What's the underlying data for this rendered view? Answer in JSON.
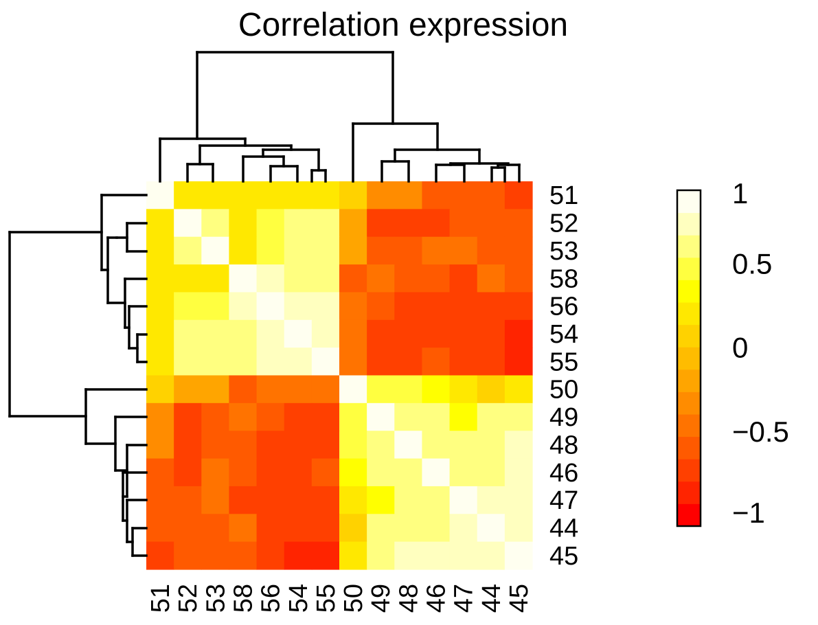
{
  "chart_data": {
    "type": "heatmap",
    "title": "Correlation expression",
    "row_labels": [
      "51",
      "52",
      "53",
      "58",
      "56",
      "54",
      "55",
      "50",
      "49",
      "48",
      "46",
      "47",
      "44",
      "45"
    ],
    "col_labels": [
      "51",
      "52",
      "53",
      "58",
      "56",
      "54",
      "55",
      "50",
      "49",
      "48",
      "46",
      "47",
      "44",
      "45"
    ],
    "values": [
      [
        1.0,
        0.2,
        0.2,
        0.2,
        0.3,
        0.3,
        0.3,
        0.15,
        -0.25,
        -0.3,
        -0.5,
        -0.6,
        -0.55,
        -0.65
      ],
      [
        0.2,
        1.0,
        0.6,
        0.3,
        0.55,
        0.65,
        0.65,
        -0.2,
        -0.7,
        -0.7,
        -0.65,
        -0.55,
        -0.6,
        -0.6
      ],
      [
        0.2,
        0.6,
        1.0,
        0.25,
        0.5,
        0.6,
        0.6,
        -0.1,
        -0.6,
        -0.6,
        -0.45,
        -0.45,
        -0.5,
        -0.5
      ],
      [
        0.2,
        0.3,
        0.25,
        1.0,
        0.85,
        0.65,
        0.65,
        -0.5,
        -0.35,
        -0.55,
        -0.55,
        -0.65,
        -0.45,
        -0.55
      ],
      [
        0.3,
        0.55,
        0.5,
        0.85,
        1.0,
        0.8,
        0.8,
        -0.45,
        -0.6,
        -0.65,
        -0.65,
        -0.65,
        -0.65,
        -0.65
      ],
      [
        0.3,
        0.65,
        0.6,
        0.65,
        0.8,
        1.0,
        0.85,
        -0.4,
        -0.65,
        -0.65,
        -0.65,
        -0.65,
        -0.65,
        -0.75
      ],
      [
        0.3,
        0.65,
        0.6,
        0.65,
        0.8,
        0.85,
        1.0,
        -0.4,
        -0.65,
        -0.65,
        -0.55,
        -0.65,
        -0.65,
        -0.75
      ],
      [
        0.15,
        -0.2,
        -0.1,
        -0.5,
        -0.45,
        -0.4,
        -0.4,
        1.0,
        0.5,
        0.5,
        0.35,
        0.2,
        0.1,
        0.2
      ],
      [
        -0.25,
        -0.7,
        -0.6,
        -0.35,
        -0.6,
        -0.65,
        -0.65,
        0.5,
        1.0,
        0.6,
        0.6,
        0.45,
        0.6,
        0.6
      ],
      [
        -0.3,
        -0.7,
        -0.6,
        -0.55,
        -0.65,
        -0.65,
        -0.65,
        0.5,
        0.6,
        1.0,
        0.65,
        0.6,
        0.65,
        0.75
      ],
      [
        -0.5,
        -0.65,
        -0.45,
        -0.55,
        -0.65,
        -0.65,
        -0.55,
        0.35,
        0.6,
        0.65,
        1.0,
        0.65,
        0.65,
        0.75
      ],
      [
        -0.6,
        -0.55,
        -0.45,
        -0.65,
        -0.65,
        -0.65,
        -0.65,
        0.2,
        0.45,
        0.6,
        0.65,
        1.0,
        0.8,
        0.8
      ],
      [
        -0.55,
        -0.6,
        -0.5,
        -0.45,
        -0.65,
        -0.65,
        -0.65,
        0.1,
        0.6,
        0.65,
        0.65,
        0.8,
        1.0,
        0.8
      ],
      [
        -0.65,
        -0.6,
        -0.5,
        -0.55,
        -0.65,
        -0.75,
        -0.75,
        0.2,
        0.6,
        0.75,
        0.75,
        0.8,
        0.8,
        1.0
      ]
    ],
    "colorbar": {
      "min": -1,
      "max": 1,
      "ticks": [
        1,
        0.5,
        0,
        -0.5,
        -1
      ],
      "tick_labels": [
        "1",
        "0.5",
        "0",
        "−0.5",
        "−1"
      ],
      "colors": [
        "#FF0000",
        "#FF2400",
        "#FF4000",
        "#FF5A00",
        "#FF7300",
        "#FF8C00",
        "#FFA500",
        "#FFBC00",
        "#FFD200",
        "#FFE800",
        "#FFFF00",
        "#FFFF40",
        "#FFFF80",
        "#FFFFBF",
        "#FFFFF0"
      ]
    },
    "dendrogram": "hierarchical clustering on rows and columns"
  }
}
